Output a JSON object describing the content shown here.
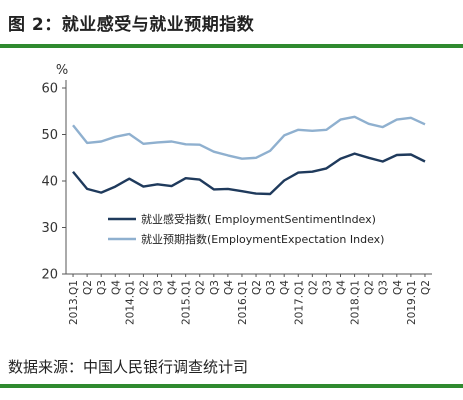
{
  "header": {
    "title": "图 2：就业感受与就业预期指数"
  },
  "footer": {
    "source": "数据来源：中国人民银行调查统计司"
  },
  "colors": {
    "rule": "#2f8a2f",
    "sentiment": "#1f3a5c",
    "expectation": "#8fb0cf"
  },
  "chart_data": {
    "type": "line",
    "title": "",
    "ylabel": "%",
    "ylim": [
      20,
      60
    ],
    "yticks": [
      20,
      30,
      40,
      50,
      60
    ],
    "grid": false,
    "legend_position": "lower-right",
    "x": [
      "2013.Q1",
      "Q2",
      "Q3",
      "Q4",
      "2014.Q1",
      "Q2",
      "Q3",
      "Q4",
      "2015.Q1",
      "Q2",
      "Q3",
      "Q4",
      "2016.Q1",
      "Q2",
      "Q3",
      "Q4",
      "2017.Q1",
      "Q2",
      "Q3",
      "Q4",
      "2018.Q1",
      "Q2",
      "Q3",
      "Q4",
      "2019.Q1",
      "Q2"
    ],
    "series": [
      {
        "name": "就业感受指数( EmploymentSentimentIndex)",
        "values": [
          42,
          38.3,
          37.5,
          38.8,
          40.5,
          38.8,
          39.3,
          38.9,
          40.6,
          40.3,
          38.2,
          38.3,
          37.8,
          37.3,
          37.2,
          40.1,
          41.8,
          42,
          42.7,
          44.8,
          45.9,
          45,
          44.2,
          45.6,
          45.7,
          44.2
        ]
      },
      {
        "name": "就业预期指数(EmploymentExpectation Index)",
        "values": [
          52,
          48.2,
          48.5,
          49.5,
          50.1,
          48,
          48.3,
          48.5,
          47.9,
          47.8,
          46.3,
          45.5,
          44.8,
          45,
          46.5,
          49.8,
          51,
          50.8,
          51,
          53.2,
          53.8,
          52.3,
          51.6,
          53.2,
          53.6,
          52.2
        ]
      }
    ]
  }
}
